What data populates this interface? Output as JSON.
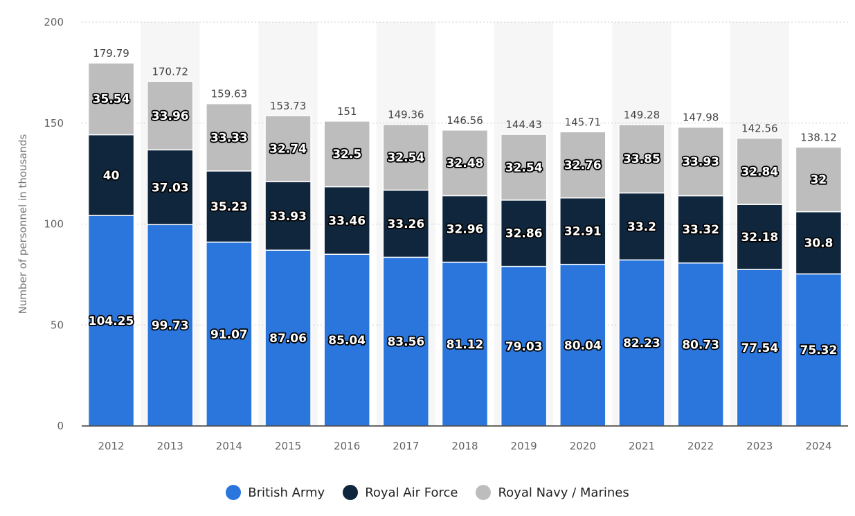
{
  "chart_data": {
    "type": "bar",
    "stacked": true,
    "ylabel": "Number of personnel in thousands",
    "ylim": [
      0,
      200
    ],
    "yticks": [
      0,
      50,
      100,
      150,
      200
    ],
    "grid": true,
    "legend_position": "bottom",
    "categories": [
      "2012",
      "2013",
      "2014",
      "2015",
      "2016",
      "2017",
      "2018",
      "2019",
      "2020",
      "2021",
      "2022",
      "2023",
      "2024"
    ],
    "series": [
      {
        "name": "British Army",
        "color": "#2a76dd",
        "values": [
          104.25,
          99.73,
          91.07,
          87.06,
          85.04,
          83.56,
          81.12,
          79.03,
          80.04,
          82.23,
          80.73,
          77.54,
          75.32
        ]
      },
      {
        "name": "Royal Air Force",
        "color": "#10263d",
        "values": [
          40,
          37.03,
          35.23,
          33.93,
          33.46,
          33.26,
          32.96,
          32.86,
          32.91,
          33.2,
          33.32,
          32.18,
          30.8
        ]
      },
      {
        "name": "Royal Navy / Marines",
        "color": "#bdbdbd",
        "values": [
          35.54,
          33.96,
          33.33,
          32.74,
          32.5,
          32.54,
          32.48,
          32.54,
          32.76,
          33.85,
          33.93,
          32.84,
          32
        ]
      }
    ],
    "totals": [
      "179.79",
      "170.72",
      "159.63",
      "153.73",
      "151",
      "149.36",
      "146.56",
      "144.43",
      "145.71",
      "149.28",
      "147.98",
      "142.56",
      "138.12"
    ]
  }
}
